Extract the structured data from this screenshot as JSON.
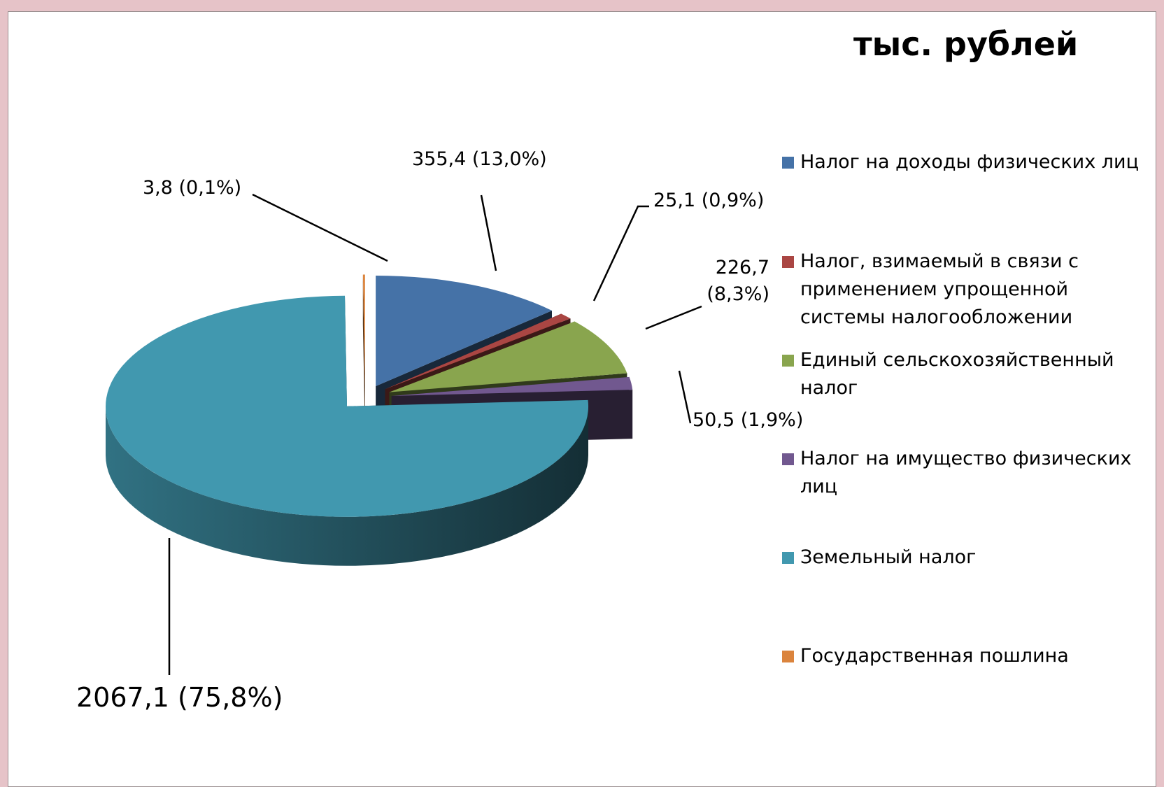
{
  "chart_data": {
    "type": "pie3d",
    "subtitle": "тыс. рублей",
    "categories": [
      "Налог на доходы физических лиц",
      "Налог, взимаемый в связи с применением упрощенной системы налогообложении",
      "Единый сельскохозяйственный налог",
      "Налог на имущество физических лиц",
      "Земельный налог",
      "Государственная пошлина"
    ],
    "values": [
      355.4,
      25.1,
      226.7,
      50.5,
      2067.1,
      3.8
    ],
    "value_labels": [
      "355,4  (13,0%)",
      "25,1  (0,9%)",
      "226,7 (8,3%)",
      "50,5 (1,9%)",
      "2067,1 (75,8%)",
      "3,8  (0,1%)"
    ],
    "colors": [
      "#4572a7",
      "#aa4643",
      "#89a54e",
      "#71588f",
      "#4198af",
      "#db843d"
    ],
    "legend": "right"
  }
}
